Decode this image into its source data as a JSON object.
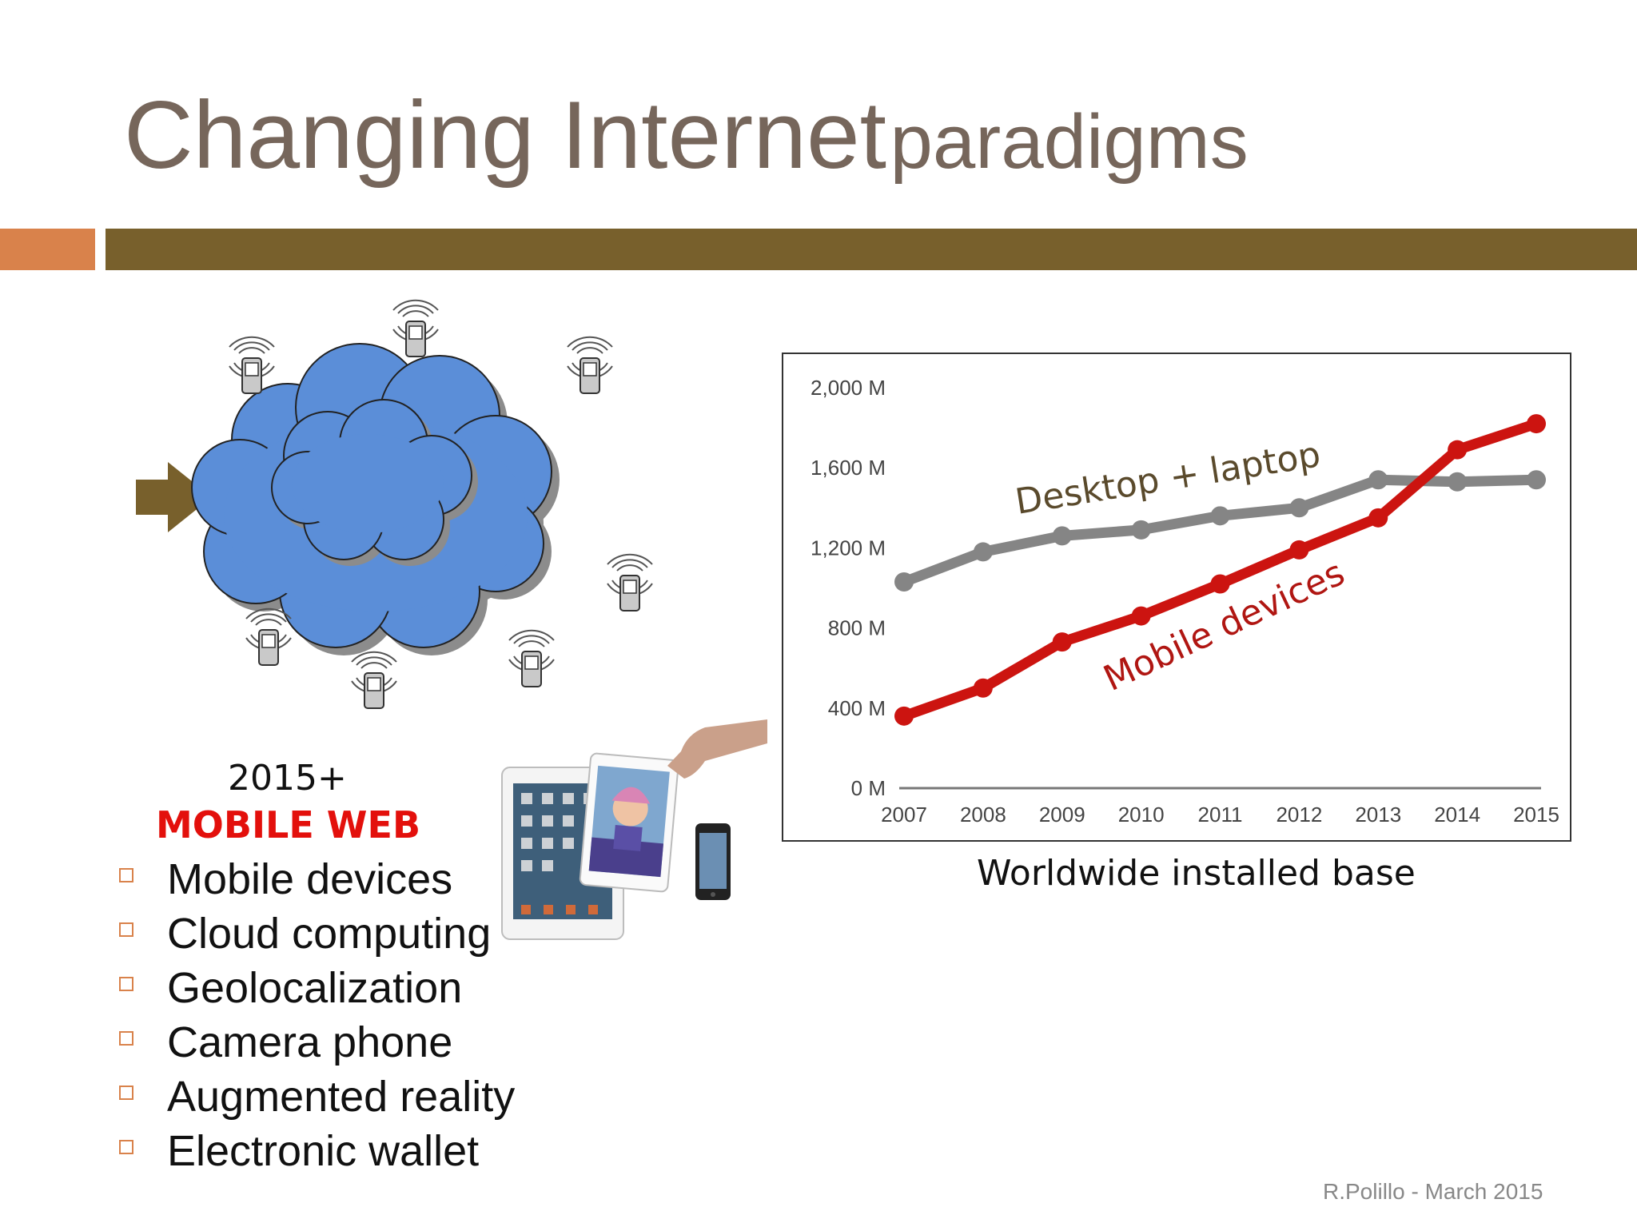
{
  "slide": {
    "title_main": "Changing Internet",
    "title_sub": "paradigms",
    "era": "2015+",
    "era_label": "MOBILE WEB",
    "bullets": [
      "Mobile devices",
      "Cloud computing",
      "Geolocalization",
      "Camera phone",
      "Augmented reality",
      "Electronic wallet"
    ],
    "footer": "R.Polillo - March 2015",
    "caption": "Worldwide installed base",
    "colors": {
      "title": "#76665b",
      "accent_bar": "#d9824b",
      "main_bar": "#78602c",
      "arrow": "#78602c",
      "cloud": "#5b8ed8",
      "mobile_label": "#e3100c"
    },
    "icons": [
      "arrow-right-icon",
      "cloud-icon",
      "mobile-phone-icon",
      "tablet-phone-photo"
    ]
  },
  "chart_data": {
    "type": "line",
    "categories": [
      "2007",
      "2008",
      "2009",
      "2010",
      "2011",
      "2012",
      "2013",
      "2014",
      "2015"
    ],
    "y_ticks": [
      "0 M",
      "400 M",
      "800 M",
      "1,200 M",
      "1,600 M",
      "2,000 M"
    ],
    "ylim": [
      0,
      2000
    ],
    "grid": false,
    "series": [
      {
        "name": "Desktop + laptop",
        "color": "#858585",
        "values": [
          1030,
          1180,
          1260,
          1290,
          1360,
          1400,
          1540,
          1530,
          1540
        ]
      },
      {
        "name": "Mobile devices",
        "color": "#cc1410",
        "values": [
          360,
          500,
          730,
          860,
          1020,
          1190,
          1350,
          1690,
          1820
        ]
      }
    ]
  }
}
